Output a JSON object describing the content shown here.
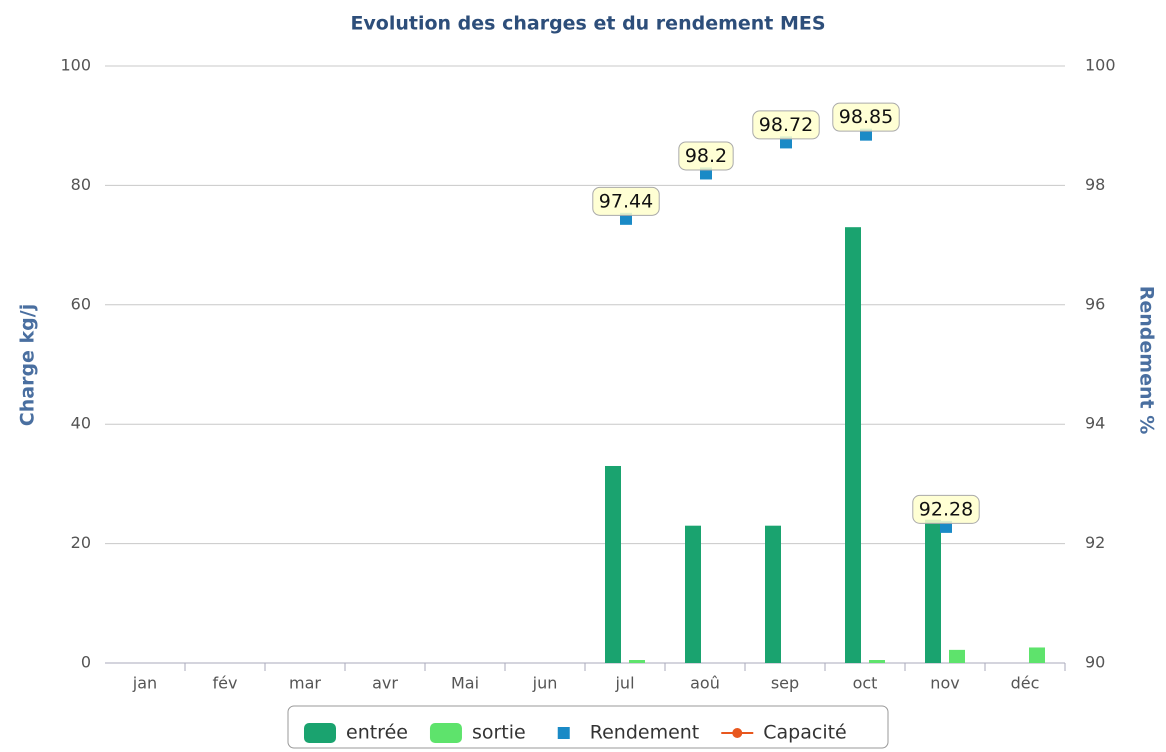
{
  "chart_data": {
    "type": "bar",
    "title": "Evolution des charges et du rendement MES",
    "categories": [
      "jan",
      "fév",
      "mar",
      "avr",
      "Mai",
      "jun",
      "jul",
      "aoû",
      "sep",
      "oct",
      "nov",
      "déc"
    ],
    "ylabel": "Charge kg/j",
    "y2label": "Rendement %",
    "ylim": [
      0,
      100
    ],
    "yticks": [
      0,
      20,
      40,
      60,
      80,
      100
    ],
    "y2lim": [
      90,
      100
    ],
    "y2ticks": [
      90,
      92,
      94,
      96,
      98,
      100
    ],
    "grid": true,
    "legend": "bottom",
    "series": [
      {
        "name": "entrée",
        "type": "bar",
        "color": "#1aa36f",
        "values": [
          null,
          null,
          null,
          null,
          null,
          null,
          33,
          23,
          23,
          73,
          24,
          null
        ]
      },
      {
        "name": "sortie",
        "type": "bar",
        "color": "#5ee36c",
        "values": [
          null,
          null,
          null,
          null,
          null,
          null,
          0.5,
          null,
          null,
          0.5,
          2.2,
          2.6
        ]
      },
      {
        "name": "Rendement",
        "type": "scatter",
        "axis": "y2",
        "color": "#1a8ac6",
        "values": [
          null,
          null,
          null,
          null,
          null,
          null,
          97.44,
          98.2,
          98.72,
          98.85,
          92.28,
          null
        ]
      },
      {
        "name": "Capacité",
        "type": "line",
        "axis": "y2",
        "color": "#e8571e",
        "values": [
          null,
          null,
          null,
          null,
          null,
          null,
          null,
          null,
          null,
          null,
          null,
          null
        ]
      }
    ]
  }
}
